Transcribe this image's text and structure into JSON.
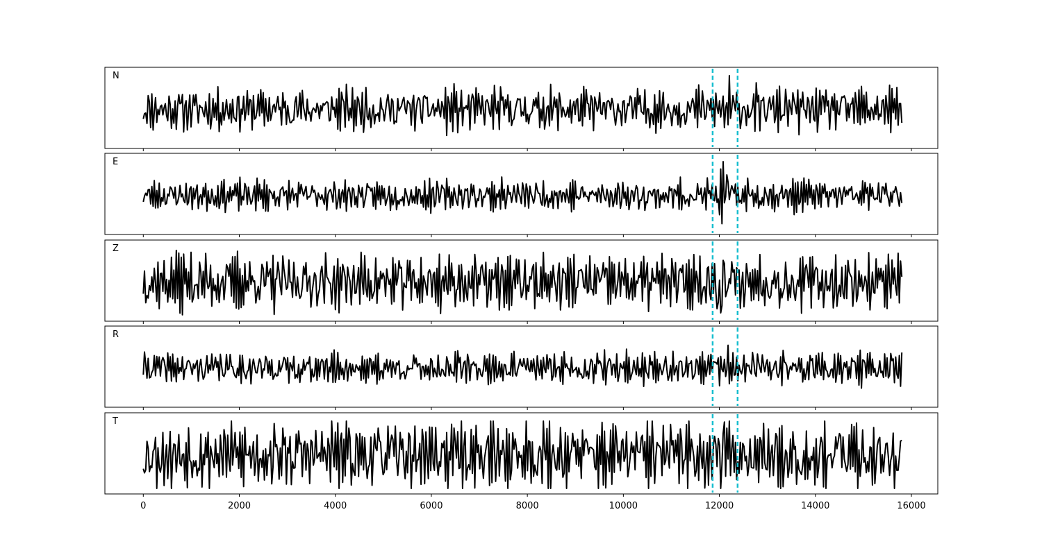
{
  "chart_data": {
    "type": "line",
    "title": "",
    "xlabel": "",
    "ylabel": "",
    "xlim": [
      -800,
      16550
    ],
    "x_ticks": [
      0,
      2000,
      4000,
      6000,
      8000,
      10000,
      12000,
      14000,
      16000
    ],
    "x_tick_labels": [
      "0",
      "2000",
      "4000",
      "6000",
      "8000",
      "10000",
      "12000",
      "14000",
      "16000"
    ],
    "x_range": [
      0,
      15800
    ],
    "grid": false,
    "trace_color": "#000000",
    "marker_color": "#17becf",
    "markers": [
      11860,
      12380
    ],
    "panels": [
      {
        "label": "N",
        "seed": 11,
        "amp": 0.55,
        "event": 0.85
      },
      {
        "label": "E",
        "seed": 23,
        "amp": 0.38,
        "event": 0.9
      },
      {
        "label": "Z",
        "seed": 37,
        "amp": 0.7,
        "event": 0.75
      },
      {
        "label": "R",
        "seed": 41,
        "amp": 0.4,
        "event": 0.95
      },
      {
        "label": "T",
        "seed": 53,
        "amp": 0.85,
        "event": 0.7
      }
    ]
  }
}
